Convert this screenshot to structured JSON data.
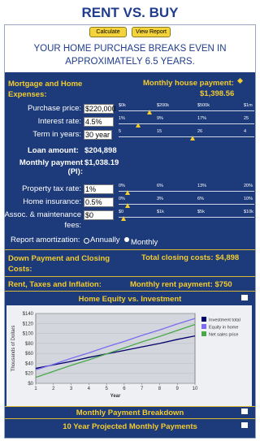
{
  "header": {
    "title": "RENT VS. BUY",
    "buttons": [
      "Calculate",
      "View Report"
    ]
  },
  "summary": "YOUR HOME PURCHASE BREAKS EVEN IN APPROXIMATELY 6.5 YEARS.",
  "mortgage": {
    "title": "Mortgage and Home Expenses:",
    "payment_label": "Monthly house payment:",
    "payment_value": "$1,398.56",
    "fields": [
      {
        "label": "Purchase price:",
        "input": "$220,000",
        "ticks": [
          "$0k",
          "$200k",
          "$500k",
          "$1m"
        ]
      },
      {
        "label": "Interest rate:",
        "input": "4.5%",
        "ticks": [
          "1%",
          "9%",
          "17%",
          "25"
        ]
      },
      {
        "label": "Term in years:",
        "input": "30 year",
        "ticks": [
          "5",
          "15",
          "26",
          "4"
        ]
      }
    ],
    "loan_label": "Loan amount:",
    "loan_value": "$204,898",
    "pi_label": "Monthly payment (PI):",
    "pi_value": "$1,038.19",
    "fields2": [
      {
        "label": "Property tax rate:",
        "input": "1%",
        "ticks": [
          "0%",
          "6%",
          "13%",
          "20%"
        ]
      },
      {
        "label": "Home insurance:",
        "input": "0.5%",
        "ticks": [
          "0%",
          "3%",
          "6%",
          "10%"
        ]
      },
      {
        "label": "Assoc. & maintenance fees:",
        "input": "$0",
        "ticks": [
          "$0",
          "$1k",
          "$5k",
          "$10k"
        ]
      }
    ],
    "amort_label": "Report amortization:",
    "amort_options": [
      "Annually",
      "Monthly"
    ]
  },
  "down_payment": {
    "title": "Down Payment and Closing Costs:",
    "total": "Total closing costs: $4,898"
  },
  "rent": {
    "title": "Rent, Taxes and Inflation:",
    "total": "Monthly rent payment: $750"
  },
  "chart": {
    "type": "line",
    "title": "Home Equity vs. Investment",
    "y_label": "Thousands of Dollars",
    "x_label": "Year",
    "x": [
      1,
      2,
      3,
      4,
      5,
      6,
      7,
      8,
      9,
      10
    ],
    "xlim": [
      1,
      10
    ],
    "xticks": [
      1,
      2,
      3,
      4,
      5,
      6,
      7,
      8,
      9,
      10
    ],
    "ylim": [
      0,
      140
    ],
    "yticks": [
      {
        "value": 0,
        "label": "$0"
      },
      {
        "value": 20,
        "label": "$20"
      },
      {
        "value": 40,
        "label": "$40"
      },
      {
        "value": 60,
        "label": "$60"
      },
      {
        "value": 80,
        "label": "$80"
      },
      {
        "value": 100,
        "label": "$100"
      },
      {
        "value": 120,
        "label": "$120"
      },
      {
        "value": 140,
        "label": "$140"
      }
    ],
    "grid": true,
    "series": [
      {
        "name": "Investment total",
        "color": "#00006b",
        "values": [
          30,
          37,
          44,
          52,
          59,
          66,
          73,
          80,
          88,
          95
        ]
      },
      {
        "name": "Equity in home",
        "color": "#7b6cf0",
        "values": [
          27,
          38,
          50,
          61,
          73,
          84,
          96,
          107,
          119,
          130
        ]
      },
      {
        "name": "Net sales price",
        "color": "#4aa84a",
        "values": [
          12,
          24,
          36,
          47,
          59,
          71,
          83,
          94,
          106,
          118
        ]
      }
    ]
  },
  "sections": [
    "Monthly Payment Breakdown",
    "10 Year Projected Monthly Payments"
  ]
}
